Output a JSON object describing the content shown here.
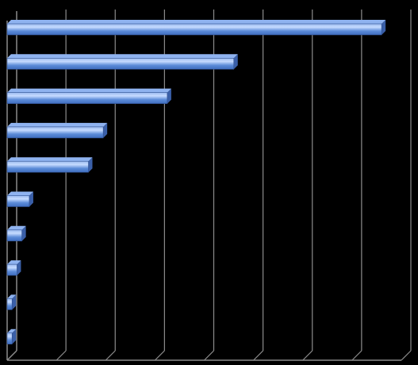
{
  "chart_data": {
    "type": "bar",
    "orientation": "horizontal",
    "style": "3d",
    "title": "",
    "xlabel": "",
    "ylabel": "",
    "categories": [
      "",
      "",
      "",
      "",
      "",
      "",
      "",
      "",
      "",
      ""
    ],
    "values": [
      7.6,
      4.6,
      3.25,
      1.95,
      1.65,
      0.45,
      0.3,
      0.2,
      0.1,
      0.1
    ],
    "xlim": [
      0,
      8
    ],
    "grid": true,
    "legend": "none",
    "colors": {
      "background": "#000000",
      "grid": "#8c8c8c",
      "bar_front": "#5b8bd8",
      "bar_highlight": "#c6dbff",
      "bar_top": "#8fb3f0",
      "bar_side": "#3a5fa8"
    }
  }
}
